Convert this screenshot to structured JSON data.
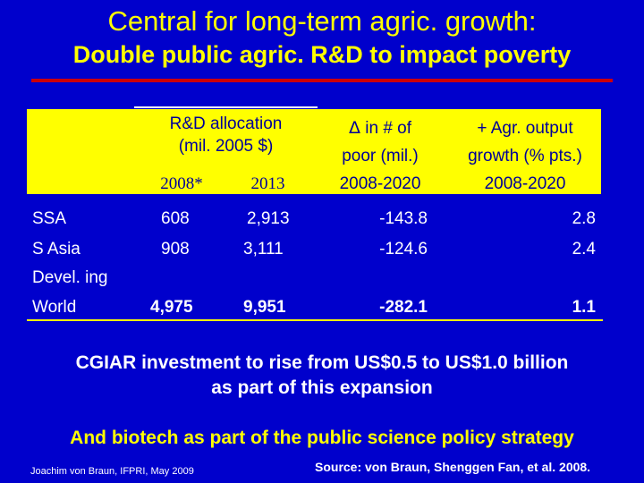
{
  "title": {
    "line1": "Central for long-term agric. growth:",
    "line2": "Double public agric. R&D to impact poverty"
  },
  "table": {
    "headers": {
      "rd_allocation_line1": "R&D allocation",
      "rd_allocation_line2": "(mil. 2005 $)",
      "year_2008": "2008*",
      "year_2013": "2013",
      "delta_symbol": "Δ",
      "poor_line1": " in # of",
      "poor_line2": "poor (mil.)",
      "poor_line3": "2008-2020",
      "agr_line1": "+ Agr. output",
      "agr_line2": "growth (% pts.)",
      "agr_line3": "2008-2020"
    },
    "rows": [
      {
        "region": "SSA",
        "rd_2008": "608",
        "rd_2013": "2,913",
        "delta_poor": "-143.8",
        "agr_growth": "2.8"
      },
      {
        "region": "S Asia",
        "rd_2008": "908",
        "rd_2013": "3,111",
        "delta_poor": "-124.6",
        "agr_growth": "2.4"
      },
      {
        "region_line1": "Devel. ing",
        "region_line2": "World",
        "rd_2008": "4,975",
        "rd_2013": "9,951",
        "delta_poor": "-282.1",
        "agr_growth": "1.1"
      }
    ]
  },
  "cgiar": {
    "line1": "CGIAR investment to rise from US$0.5 to US$1.0 billion",
    "line2": "as part of this expansion"
  },
  "biotech": "And biotech as part of the public science policy strategy",
  "footer": {
    "author": "Joachim von Braun, IFPRI, May 2009",
    "source": "Source: von Braun, Shenggen Fan, et al. 2008."
  },
  "colors": {
    "background": "#0000cc",
    "title": "#ffff00",
    "accent_line": "#cc0000",
    "header_box": "#ffff00",
    "header_text": "#000099"
  }
}
